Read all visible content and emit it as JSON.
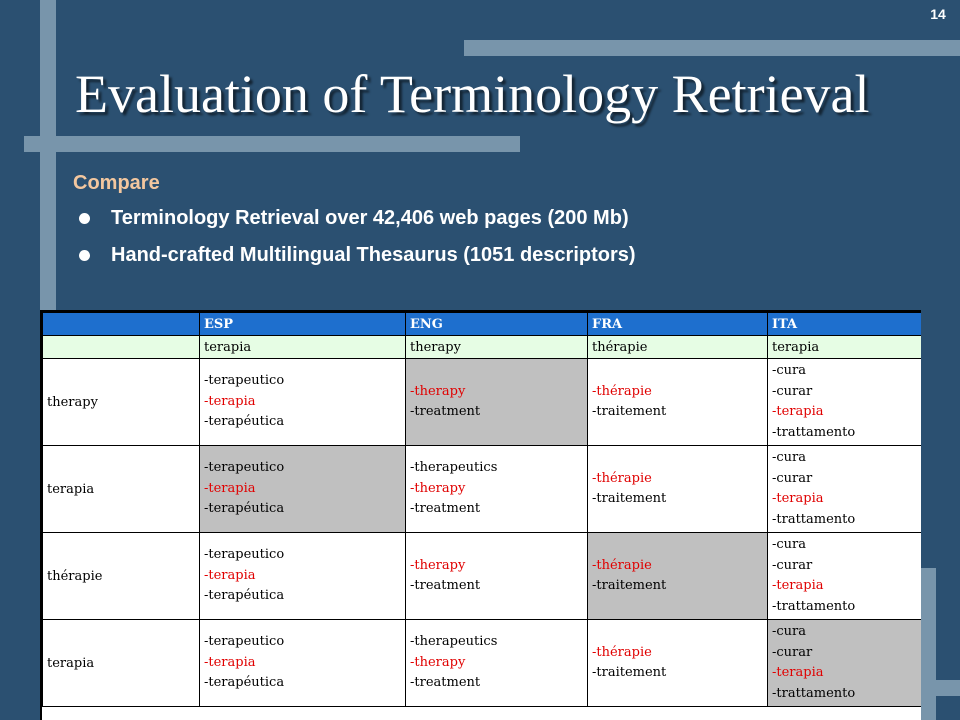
{
  "slide": {
    "page_number": "14",
    "title": "Evaluation of Terminology Retrieval",
    "subtitle": "Compare",
    "bullets": [
      "Terminology Retrieval over 42,406 web pages (200 Mb)",
      "Hand-crafted Multilingual Thesaurus (1051 descriptors)"
    ]
  },
  "colors": {
    "background": "#2b5071",
    "accent_bar": "#7895ab",
    "subtitle": "#f3c79f",
    "table_header": "#1e6fce",
    "translation_row": "#e6fde4",
    "shaded_cell": "#c0c0c0",
    "highlight_term": "#e00000"
  },
  "table": {
    "headers": [
      "",
      "ESP",
      "ENG",
      "FRA",
      "ITA"
    ],
    "translations": [
      "",
      "terapia",
      "therapy",
      "thérapie",
      "terapia"
    ],
    "rows": [
      {
        "label": "therapy",
        "cells": [
          {
            "shaded": false,
            "terms": [
              {
                "t": "-terapeutico",
                "hl": false
              },
              {
                "t": "-terapia",
                "hl": true
              },
              {
                "t": "-terapéutica",
                "hl": false
              }
            ]
          },
          {
            "shaded": true,
            "terms": [
              {
                "t": "-therapy",
                "hl": true
              },
              {
                "t": "-treatment",
                "hl": false
              }
            ]
          },
          {
            "shaded": false,
            "terms": [
              {
                "t": "-thérapie",
                "hl": true
              },
              {
                "t": "-traitement",
                "hl": false
              }
            ]
          },
          {
            "shaded": false,
            "terms": [
              {
                "t": "-cura",
                "hl": false
              },
              {
                "t": "-curar",
                "hl": false
              },
              {
                "t": "-terapia",
                "hl": true
              },
              {
                "t": "-trattamento",
                "hl": false
              }
            ]
          }
        ]
      },
      {
        "label": "terapia",
        "cells": [
          {
            "shaded": true,
            "terms": [
              {
                "t": "-terapeutico",
                "hl": false
              },
              {
                "t": "-terapia",
                "hl": true
              },
              {
                "t": "-terapéutica",
                "hl": false
              }
            ]
          },
          {
            "shaded": false,
            "terms": [
              {
                "t": "-therapeutics",
                "hl": false
              },
              {
                "t": "-therapy",
                "hl": true
              },
              {
                "t": "-treatment",
                "hl": false
              }
            ]
          },
          {
            "shaded": false,
            "terms": [
              {
                "t": "-thérapie",
                "hl": true
              },
              {
                "t": "-traitement",
                "hl": false
              }
            ]
          },
          {
            "shaded": false,
            "terms": [
              {
                "t": "-cura",
                "hl": false
              },
              {
                "t": "-curar",
                "hl": false
              },
              {
                "t": "-terapia",
                "hl": true
              },
              {
                "t": "-trattamento",
                "hl": false
              }
            ]
          }
        ]
      },
      {
        "label": "thérapie",
        "cells": [
          {
            "shaded": false,
            "terms": [
              {
                "t": "-terapeutico",
                "hl": false
              },
              {
                "t": "-terapia",
                "hl": true
              },
              {
                "t": "-terapéutica",
                "hl": false
              }
            ]
          },
          {
            "shaded": false,
            "terms": [
              {
                "t": "-therapy",
                "hl": true
              },
              {
                "t": "-treatment",
                "hl": false
              }
            ]
          },
          {
            "shaded": true,
            "terms": [
              {
                "t": "-thérapie",
                "hl": true
              },
              {
                "t": "-traitement",
                "hl": false
              }
            ]
          },
          {
            "shaded": false,
            "terms": [
              {
                "t": "-cura",
                "hl": false
              },
              {
                "t": "-curar",
                "hl": false
              },
              {
                "t": "-terapia",
                "hl": true
              },
              {
                "t": "-trattamento",
                "hl": false
              }
            ]
          }
        ]
      },
      {
        "label": "terapia",
        "cells": [
          {
            "shaded": false,
            "terms": [
              {
                "t": "-terapeutico",
                "hl": false
              },
              {
                "t": "-terapia",
                "hl": true
              },
              {
                "t": "-terapéutica",
                "hl": false
              }
            ]
          },
          {
            "shaded": false,
            "terms": [
              {
                "t": "-therapeutics",
                "hl": false
              },
              {
                "t": "-therapy",
                "hl": true
              },
              {
                "t": "-treatment",
                "hl": false
              }
            ]
          },
          {
            "shaded": false,
            "terms": [
              {
                "t": "-thérapie",
                "hl": true
              },
              {
                "t": "-traitement",
                "hl": false
              }
            ]
          },
          {
            "shaded": true,
            "terms": [
              {
                "t": "-cura",
                "hl": false
              },
              {
                "t": "-curar",
                "hl": false
              },
              {
                "t": "-terapia",
                "hl": true
              },
              {
                "t": "-trattamento",
                "hl": false
              }
            ]
          }
        ]
      }
    ]
  }
}
